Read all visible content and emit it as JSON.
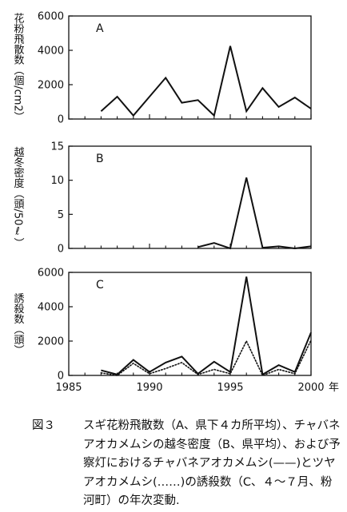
{
  "chart_data": [
    {
      "type": "line",
      "panel_label": "A",
      "ylabel": "花粉飛散数（個/cm2）",
      "yticks": [
        0,
        2000,
        4000,
        6000
      ],
      "ylim": [
        0,
        6000
      ],
      "xlim": [
        1985,
        2000
      ],
      "x": [
        1987,
        1988,
        1989,
        1990,
        1991,
        1992,
        1993,
        1994,
        1995,
        1996,
        1997,
        1998,
        1999,
        2000
      ],
      "series": [
        {
          "style": "solid",
          "values": [
            450,
            1300,
            200,
            1300,
            2400,
            950,
            1100,
            200,
            4250,
            450,
            1800,
            700,
            1250,
            600
          ]
        }
      ]
    },
    {
      "type": "line",
      "panel_label": "B",
      "ylabel": "越冬密度（頭/50ℓ）",
      "yticks": [
        0,
        5,
        10,
        15
      ],
      "ylim": [
        0,
        15
      ],
      "xlim": [
        1985,
        2000
      ],
      "x": [
        1993,
        1994,
        1995,
        1996,
        1997,
        1998,
        1999,
        2000
      ],
      "series": [
        {
          "style": "solid",
          "values": [
            0.2,
            0.8,
            0.0,
            10.4,
            0.1,
            0.3,
            0.0,
            0.3
          ]
        }
      ]
    },
    {
      "type": "line",
      "panel_label": "C",
      "ylabel": "誘殺数（頭）",
      "yticks": [
        0,
        2000,
        4000,
        6000
      ],
      "ylim": [
        0,
        6000
      ],
      "xlim": [
        1985,
        2000
      ],
      "xticks": [
        1985,
        1990,
        1995,
        2000
      ],
      "xlabel_suffix": "年",
      "x": [
        1987,
        1988,
        1989,
        1990,
        1991,
        1992,
        1993,
        1994,
        1995,
        1996,
        1997,
        1998,
        1999,
        2000
      ],
      "series": [
        {
          "style": "solid",
          "values": [
            300,
            50,
            900,
            200,
            750,
            1100,
            100,
            800,
            200,
            5750,
            50,
            600,
            200,
            2500
          ]
        },
        {
          "style": "dotted",
          "values": [
            150,
            0,
            700,
            100,
            400,
            750,
            50,
            350,
            100,
            2000,
            0,
            350,
            100,
            2050
          ]
        }
      ]
    }
  ],
  "caption": {
    "figure_label": "図３",
    "lines": [
      "スギ花粉飛散数（A、県下４カ所平均）、チャバネ",
      "アオカメムシの越冬密度（B、県平均）、および予",
      "察灯におけるチャバネアオカメムシ(——)とツヤ",
      "アオカメムシ(……)の誘殺数（C、４〜７月、粉",
      "河町）の年次変動."
    ]
  }
}
